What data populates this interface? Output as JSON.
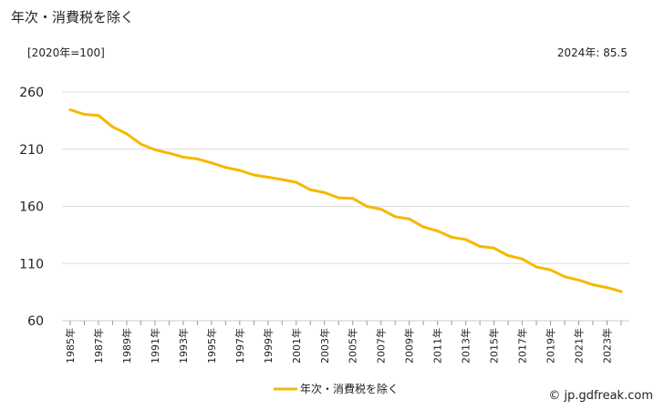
{
  "title": "年次・消費税を除く",
  "unit_label": "[2020年=100]",
  "latest_label": "2024年: 85.5",
  "credit": "© jp.gdfreak.com",
  "chart_data": {
    "type": "line",
    "title": "年次・消費税を除く",
    "xlabel": "",
    "ylabel": "[2020年=100]",
    "ylim": [
      60,
      260
    ],
    "y_ticks": [
      60,
      110,
      160,
      210,
      260
    ],
    "grid": true,
    "legend_position": "bottom",
    "line_color": "#f5b800",
    "x": [
      1985,
      1986,
      1987,
      1988,
      1989,
      1990,
      1991,
      1992,
      1993,
      1994,
      1995,
      1996,
      1997,
      1998,
      1999,
      2000,
      2001,
      2002,
      2003,
      2004,
      2005,
      2006,
      2007,
      2008,
      2009,
      2010,
      2011,
      2012,
      2013,
      2014,
      2015,
      2016,
      2017,
      2018,
      2019,
      2020,
      2021,
      2022,
      2023,
      2024
    ],
    "x_tick_labels": [
      "1985年",
      "1987年",
      "1989年",
      "1991年",
      "1993年",
      "1995年",
      "1997年",
      "1999年",
      "2001年",
      "2003年",
      "2005年",
      "2007年",
      "2009年",
      "2011年",
      "2013年",
      "2015年",
      "2017年",
      "2019年",
      "2021年",
      "2023年"
    ],
    "series": [
      {
        "name": "年次・消費税を除く",
        "values": [
          244.5,
          240.5,
          239.5,
          229.5,
          223.5,
          214.5,
          209.5,
          206.5,
          203,
          201.5,
          198,
          194,
          191.5,
          187.5,
          185.5,
          183.5,
          181,
          174.5,
          172,
          167.5,
          167,
          160,
          157.5,
          151,
          149,
          142,
          138.5,
          133,
          131,
          125,
          123.5,
          117,
          114,
          107,
          104.5,
          98.5,
          95.5,
          91.5,
          89,
          85.5
        ]
      }
    ]
  }
}
